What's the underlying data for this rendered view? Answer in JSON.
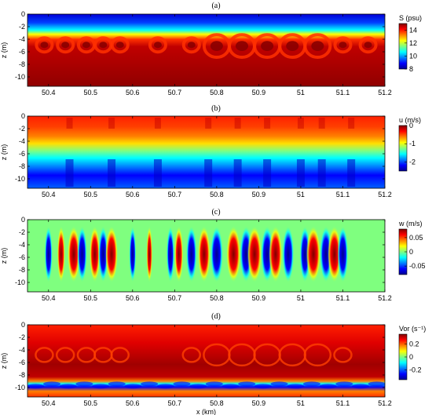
{
  "chart_data": [
    {
      "panel": "(a)",
      "type": "heatmap",
      "title": "",
      "xlabel": "",
      "ylabel": "z (m)",
      "xlim": [
        50.35,
        51.2
      ],
      "ylim": [
        -11.5,
        0
      ],
      "xticks": [
        "50.4",
        "50.5",
        "50.6",
        "50.7",
        "50.8",
        "50.9",
        "51",
        "51.1",
        "51.2"
      ],
      "yticks": [
        "0",
        "-2",
        "-4",
        "-6",
        "-8",
        "-10"
      ],
      "colorbar": {
        "label": "S (psu)",
        "range": [
          8,
          15
        ],
        "ticks": [
          "14",
          "12",
          "10",
          "8"
        ]
      },
      "field": "salinity",
      "description_values": {
        "surface_layer_S": 8,
        "bottom_layer_S": 15,
        "interface_depth_m": -3.8
      }
    },
    {
      "panel": "(b)",
      "type": "heatmap",
      "title": "",
      "xlabel": "",
      "ylabel": "z (m)",
      "xlim": [
        50.35,
        51.2
      ],
      "ylim": [
        -11.5,
        0
      ],
      "xticks": [
        "50.4",
        "50.5",
        "50.6",
        "50.7",
        "50.8",
        "50.9",
        "51",
        "51.1",
        "51.2"
      ],
      "yticks": [
        "0",
        "-2",
        "-4",
        "-6",
        "-8",
        "-10"
      ],
      "colorbar": {
        "label": "u (m/s)",
        "range": [
          -2.5,
          0
        ],
        "ticks": [
          "0",
          "-1",
          "-2"
        ]
      },
      "field": "u",
      "description_values": {
        "upper_u": 0,
        "lower_u": -2.3
      }
    },
    {
      "panel": "(c)",
      "type": "heatmap",
      "title": "",
      "xlabel": "",
      "ylabel": "z (m)",
      "xlim": [
        50.35,
        51.2
      ],
      "ylim": [
        -11.5,
        0
      ],
      "xticks": [
        "50.4",
        "50.5",
        "50.6",
        "50.7",
        "50.8",
        "50.9",
        "51",
        "51.1",
        "51.2"
      ],
      "yticks": [
        "0",
        "-2",
        "-4",
        "-6",
        "-8",
        "-10"
      ],
      "colorbar": {
        "label": "w (m/s)",
        "range": [
          -0.08,
          0.08
        ],
        "ticks": [
          "0.05",
          "0",
          "-0.05"
        ]
      },
      "field": "w",
      "description_values": {
        "max_w": 0.07,
        "min_w": -0.07
      }
    },
    {
      "panel": "(d)",
      "type": "heatmap",
      "title": "",
      "xlabel": "x (km)",
      "ylabel": "z (m)",
      "xlim": [
        50.35,
        51.2
      ],
      "ylim": [
        -11.5,
        0
      ],
      "xticks": [
        "50.4",
        "50.5",
        "50.6",
        "50.7",
        "50.8",
        "50.9",
        "51",
        "51.1",
        "51.2"
      ],
      "yticks": [
        "0",
        "-2",
        "-4",
        "-6",
        "-8",
        "-10"
      ],
      "colorbar": {
        "label": "Vor (s⁻¹)",
        "range": [
          -0.35,
          0.35
        ],
        "ticks": [
          "0.2",
          "0",
          "-0.2"
        ]
      },
      "field": "vorticity",
      "description_values": {
        "max_vor": 0.3,
        "min_vor": -0.3
      }
    }
  ],
  "palette": [
    "#00008f",
    "#0000ff",
    "#0080ff",
    "#00ffff",
    "#80ff80",
    "#ffff00",
    "#ff8000",
    "#ff0000",
    "#800000"
  ]
}
